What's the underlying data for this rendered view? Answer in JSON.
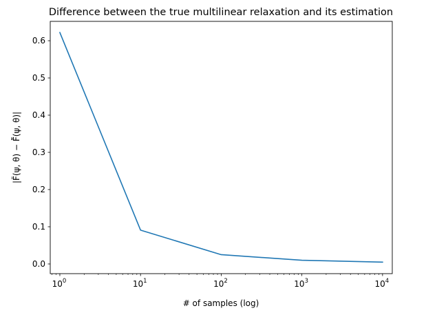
{
  "chart_data": {
    "type": "line",
    "title": "Difference between the true multilinear relaxation and its estimation",
    "xlabel": "# of samples (log)",
    "ylabel": "|F̃(ψ, θ) − F̂̃(ψ, θ)|",
    "xscale": "log",
    "xlim": [
      0.76,
      13200
    ],
    "ylim": [
      -0.026,
      0.652
    ],
    "grid": false,
    "x_ticks": [
      {
        "value": 1,
        "base": "10",
        "exp": "0"
      },
      {
        "value": 10,
        "base": "10",
        "exp": "1"
      },
      {
        "value": 100,
        "base": "10",
        "exp": "2"
      },
      {
        "value": 1000,
        "base": "10",
        "exp": "3"
      },
      {
        "value": 10000,
        "base": "10",
        "exp": "4"
      }
    ],
    "y_ticks": [
      "0.0",
      "0.1",
      "0.2",
      "0.3",
      "0.4",
      "0.5",
      "0.6"
    ],
    "series": [
      {
        "color": "#1f77b4",
        "x": [
          1,
          10,
          100,
          1000,
          10000
        ],
        "y": [
          0.622,
          0.091,
          0.025,
          0.01,
          0.005
        ]
      }
    ]
  }
}
